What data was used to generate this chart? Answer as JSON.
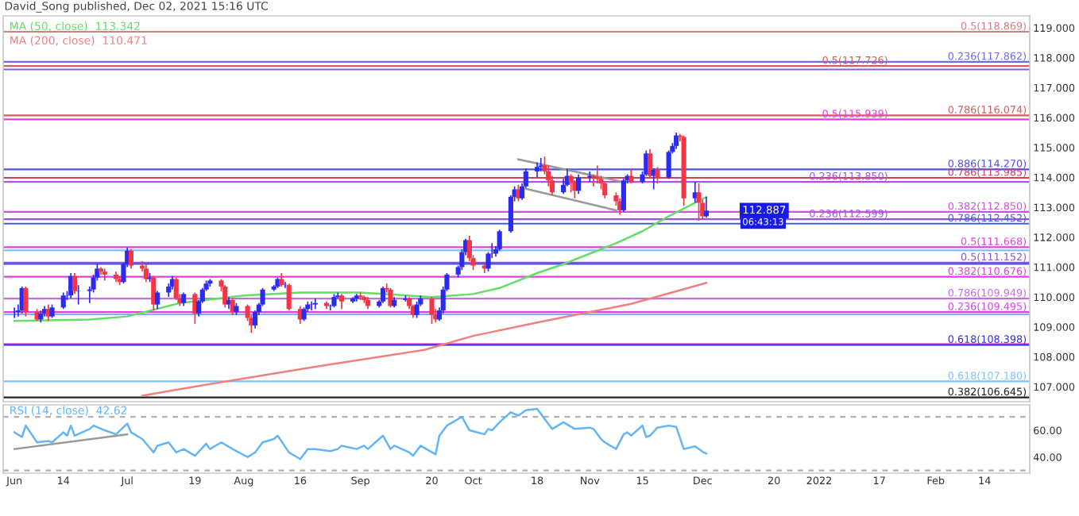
{
  "chart_data": [
    {
      "type": "candlestick",
      "annotations": [
        "David_Song published, Dec 02, 2021 15:16 UTC",
        {
          "text": "112.887",
          "y": 112.887
        },
        "06:43:13"
      ],
      "x": [
        "2021-06-01",
        "2021-06-02",
        "2021-06-03",
        "2021-06-04",
        "2021-06-07",
        "2021-06-08",
        "2021-06-09",
        "2021-06-10",
        "2021-06-11",
        "2021-06-14",
        "2021-06-15",
        "2021-06-16",
        "2021-06-17",
        "2021-06-18",
        "2021-06-21",
        "2021-06-22",
        "2021-06-23",
        "2021-06-24",
        "2021-06-25",
        "2021-06-28",
        "2021-06-29",
        "2021-06-30",
        "2021-07-01",
        "2021-07-02",
        "2021-07-05",
        "2021-07-06",
        "2021-07-07",
        "2021-07-08",
        "2021-07-09",
        "2021-07-12",
        "2021-07-13",
        "2021-07-14",
        "2021-07-15",
        "2021-07-16",
        "2021-07-19",
        "2021-07-20",
        "2021-07-21",
        "2021-07-22",
        "2021-07-23",
        "2021-07-26",
        "2021-07-27",
        "2021-07-28",
        "2021-07-29",
        "2021-07-30",
        "2021-08-02",
        "2021-08-03",
        "2021-08-04",
        "2021-08-05",
        "2021-08-06",
        "2021-08-09",
        "2021-08-10",
        "2021-08-11",
        "2021-08-12",
        "2021-08-13",
        "2021-08-16",
        "2021-08-17",
        "2021-08-18",
        "2021-08-19",
        "2021-08-20",
        "2021-08-23",
        "2021-08-24",
        "2021-08-25",
        "2021-08-26",
        "2021-08-27",
        "2021-08-30",
        "2021-08-31",
        "2021-09-01",
        "2021-09-02",
        "2021-09-03",
        "2021-09-06",
        "2021-09-07",
        "2021-09-08",
        "2021-09-09",
        "2021-09-10",
        "2021-09-13",
        "2021-09-14",
        "2021-09-15",
        "2021-09-16",
        "2021-09-17",
        "2021-09-20",
        "2021-09-21",
        "2021-09-22",
        "2021-09-23",
        "2021-09-24",
        "2021-09-27",
        "2021-09-28",
        "2021-09-29",
        "2021-09-30",
        "2021-10-01",
        "2021-10-04",
        "2021-10-05",
        "2021-10-06",
        "2021-10-07",
        "2021-10-08",
        "2021-10-11",
        "2021-10-12",
        "2021-10-13",
        "2021-10-14",
        "2021-10-15",
        "2021-10-18",
        "2021-10-19",
        "2021-10-20",
        "2021-10-21",
        "2021-10-22",
        "2021-10-25",
        "2021-10-26",
        "2021-10-27",
        "2021-10-28",
        "2021-10-29",
        "2021-11-01",
        "2021-11-02",
        "2021-11-03",
        "2021-11-04",
        "2021-11-05",
        "2021-11-08",
        "2021-11-09",
        "2021-11-10",
        "2021-11-11",
        "2021-11-12",
        "2021-11-15",
        "2021-11-16",
        "2021-11-17",
        "2021-11-18",
        "2021-11-19",
        "2021-11-22",
        "2021-11-23",
        "2021-11-24",
        "2021-11-25",
        "2021-11-26",
        "2021-11-29",
        "2021-11-30",
        "2021-12-01",
        "2021-12-02"
      ],
      "ohlc": [
        [
          109.5,
          109.65,
          109.3,
          109.5
        ],
        [
          109.5,
          109.75,
          109.35,
          109.55
        ],
        [
          109.55,
          110.35,
          109.45,
          110.3
        ],
        [
          110.3,
          110.35,
          109.35,
          109.5
        ],
        [
          109.5,
          109.6,
          109.2,
          109.25
        ],
        [
          109.25,
          109.55,
          109.15,
          109.45
        ],
        [
          109.45,
          109.7,
          109.35,
          109.6
        ],
        [
          109.6,
          109.75,
          109.2,
          109.35
        ],
        [
          109.35,
          109.75,
          109.3,
          109.65
        ],
        [
          109.65,
          110.15,
          109.6,
          110.05
        ],
        [
          110.05,
          110.2,
          109.9,
          110.05
        ],
        [
          110.05,
          110.8,
          109.95,
          110.7
        ],
        [
          110.7,
          110.8,
          110.1,
          110.2
        ],
        [
          110.2,
          110.4,
          109.75,
          110.2
        ],
        [
          110.2,
          110.35,
          109.8,
          110.25
        ],
        [
          110.25,
          110.75,
          110.15,
          110.65
        ],
        [
          110.65,
          111.1,
          110.55,
          110.95
        ],
        [
          110.95,
          111.0,
          110.75,
          110.85
        ],
        [
          110.85,
          110.95,
          110.55,
          110.75
        ],
        [
          110.75,
          110.85,
          110.5,
          110.6
        ],
        [
          110.6,
          110.7,
          110.4,
          110.5
        ],
        [
          110.5,
          111.15,
          110.45,
          111.1
        ],
        [
          111.1,
          111.65,
          111.0,
          111.55
        ],
        [
          111.55,
          111.6,
          110.95,
          111.05
        ],
        [
          111.05,
          111.2,
          110.85,
          110.95
        ],
        [
          110.95,
          111.1,
          110.5,
          110.6
        ],
        [
          110.6,
          110.8,
          110.5,
          110.65
        ],
        [
          110.65,
          110.7,
          109.55,
          109.75
        ],
        [
          109.75,
          110.2,
          109.6,
          110.15
        ],
        [
          110.15,
          110.45,
          110.0,
          110.35
        ],
        [
          110.35,
          110.7,
          110.25,
          110.6
        ],
        [
          110.6,
          110.65,
          109.9,
          109.95
        ],
        [
          109.95,
          110.1,
          109.7,
          109.8
        ],
        [
          109.8,
          110.15,
          109.7,
          110.1
        ],
        [
          110.1,
          110.15,
          109.1,
          109.45
        ],
        [
          109.45,
          109.9,
          109.35,
          109.85
        ],
        [
          109.85,
          110.3,
          109.8,
          110.25
        ],
        [
          110.25,
          110.55,
          110.2,
          110.45
        ],
        [
          110.45,
          110.6,
          110.35,
          110.55
        ],
        [
          110.55,
          110.6,
          110.2,
          110.35
        ],
        [
          110.35,
          110.4,
          109.65,
          109.75
        ],
        [
          109.75,
          110.0,
          109.6,
          109.9
        ],
        [
          109.9,
          109.95,
          109.4,
          109.5
        ],
        [
          109.5,
          109.8,
          109.4,
          109.7
        ],
        [
          109.7,
          109.75,
          109.2,
          109.3
        ],
        [
          109.3,
          109.4,
          108.8,
          109.05
        ],
        [
          109.05,
          109.55,
          108.95,
          109.5
        ],
        [
          109.5,
          109.8,
          109.4,
          109.75
        ],
        [
          109.75,
          110.3,
          109.7,
          110.25
        ],
        [
          110.25,
          110.4,
          110.2,
          110.35
        ],
        [
          110.35,
          110.65,
          110.3,
          110.6
        ],
        [
          110.6,
          110.8,
          110.35,
          110.4
        ],
        [
          110.4,
          110.5,
          110.3,
          110.4
        ],
        [
          110.4,
          110.45,
          109.55,
          109.6
        ],
        [
          109.6,
          109.7,
          109.1,
          109.25
        ],
        [
          109.25,
          109.65,
          109.2,
          109.6
        ],
        [
          109.6,
          109.85,
          109.5,
          109.75
        ],
        [
          109.75,
          109.85,
          109.55,
          109.75
        ],
        [
          109.75,
          109.95,
          109.6,
          109.8
        ],
        [
          109.8,
          109.85,
          109.6,
          109.7
        ],
        [
          109.7,
          109.75,
          109.55,
          109.7
        ],
        [
          109.7,
          110.1,
          109.65,
          110.0
        ],
        [
          110.0,
          110.15,
          109.95,
          110.05
        ],
        [
          110.05,
          110.1,
          109.6,
          109.85
        ],
        [
          109.85,
          110.0,
          109.8,
          109.95
        ],
        [
          109.95,
          110.1,
          109.85,
          110.05
        ],
        [
          110.05,
          110.15,
          109.9,
          110.0
        ],
        [
          110.0,
          110.05,
          109.8,
          109.9
        ],
        [
          109.9,
          110.0,
          109.6,
          109.7
        ],
        [
          109.7,
          109.9,
          109.65,
          109.85
        ],
        [
          109.85,
          110.35,
          109.8,
          110.3
        ],
        [
          110.3,
          110.45,
          110.15,
          110.25
        ],
        [
          110.25,
          110.3,
          109.65,
          109.7
        ],
        [
          109.7,
          110.0,
          109.65,
          109.9
        ],
        [
          109.9,
          110.05,
          109.85,
          109.95
        ],
        [
          109.95,
          110.0,
          109.6,
          109.7
        ],
        [
          109.7,
          109.75,
          109.3,
          109.4
        ],
        [
          109.4,
          109.85,
          109.3,
          109.75
        ],
        [
          109.75,
          110.05,
          109.7,
          109.95
        ],
        [
          109.95,
          110.0,
          109.1,
          109.4
        ],
        [
          109.4,
          109.6,
          109.15,
          109.25
        ],
        [
          109.25,
          109.65,
          109.2,
          109.55
        ],
        [
          109.55,
          110.35,
          109.45,
          110.25
        ],
        [
          110.25,
          110.8,
          110.2,
          110.75
        ],
        [
          110.75,
          111.05,
          110.65,
          111.0
        ],
        [
          111.0,
          111.6,
          110.9,
          111.5
        ],
        [
          111.5,
          111.95,
          111.4,
          111.9
        ],
        [
          111.9,
          112.05,
          111.2,
          111.3
        ],
        [
          111.3,
          111.4,
          110.9,
          111.05
        ],
        [
          111.05,
          111.15,
          110.8,
          110.95
        ],
        [
          110.95,
          111.5,
          110.85,
          111.45
        ],
        [
          111.45,
          111.8,
          111.3,
          111.45
        ],
        [
          111.45,
          111.7,
          111.35,
          111.6
        ],
        [
          111.6,
          112.25,
          111.55,
          112.2
        ],
        [
          112.2,
          113.4,
          112.15,
          113.35
        ],
        [
          113.35,
          113.7,
          113.2,
          113.6
        ],
        [
          113.6,
          113.75,
          113.2,
          113.3
        ],
        [
          113.3,
          113.8,
          113.25,
          113.7
        ],
        [
          113.7,
          114.3,
          113.65,
          114.2
        ],
        [
          114.2,
          114.5,
          114.0,
          114.35
        ],
        [
          114.35,
          114.65,
          114.2,
          114.4
        ],
        [
          114.4,
          114.7,
          114.1,
          114.2
        ],
        [
          114.2,
          114.4,
          113.7,
          113.9
        ],
        [
          113.9,
          114.05,
          113.4,
          113.5
        ],
        [
          113.5,
          113.95,
          113.45,
          113.75
        ],
        [
          113.75,
          114.3,
          113.7,
          114.05
        ],
        [
          114.05,
          114.1,
          113.5,
          113.85
        ],
        [
          113.85,
          113.9,
          113.3,
          113.55
        ],
        [
          113.55,
          114.1,
          113.45,
          114.0
        ],
        [
          114.0,
          114.2,
          113.85,
          114.05
        ],
        [
          114.05,
          114.1,
          113.7,
          114.0
        ],
        [
          114.0,
          114.4,
          113.8,
          113.95
        ],
        [
          113.95,
          114.05,
          113.6,
          113.8
        ],
        [
          113.8,
          113.85,
          113.3,
          113.4
        ],
        [
          113.4,
          113.5,
          113.05,
          113.2
        ],
        [
          113.2,
          113.3,
          112.75,
          112.9
        ],
        [
          112.9,
          113.95,
          112.85,
          113.9
        ],
        [
          113.9,
          114.1,
          113.8,
          114.05
        ],
        [
          114.05,
          114.3,
          113.8,
          113.85
        ],
        [
          113.85,
          114.2,
          113.8,
          114.1
        ],
        [
          114.1,
          114.9,
          114.05,
          114.8
        ],
        [
          114.8,
          114.95,
          113.95,
          114.05
        ],
        [
          114.05,
          114.3,
          113.6,
          114.25
        ],
        [
          114.25,
          114.35,
          113.8,
          114.0
        ],
        [
          114.0,
          114.9,
          113.95,
          114.85
        ],
        [
          114.85,
          115.15,
          114.8,
          115.05
        ],
        [
          115.05,
          115.5,
          114.95,
          115.4
        ],
        [
          115.4,
          115.45,
          115.2,
          115.35
        ],
        [
          115.35,
          115.4,
          113.05,
          113.3
        ],
        [
          113.3,
          113.85,
          113.15,
          113.5
        ],
        [
          113.5,
          113.8,
          112.55,
          113.15
        ],
        [
          113.15,
          113.25,
          112.6,
          112.7
        ],
        [
          112.7,
          113.35,
          112.65,
          112.887
        ]
      ],
      "series": [
        {
          "type": "line",
          "name": "MA (50, close)",
          "color": "#66dd66",
          "x": [
            "2021-06-01",
            "2021-06-21",
            "2021-07-01",
            "2021-07-15",
            "2021-08-01",
            "2021-08-16",
            "2021-09-01",
            "2021-09-20",
            "2021-10-01",
            "2021-10-08",
            "2021-10-18",
            "2021-10-25",
            "2021-11-01",
            "2021-11-08",
            "2021-11-15",
            "2021-11-22",
            "2021-12-02"
          ],
          "values": [
            109.2,
            109.25,
            109.35,
            109.8,
            110.05,
            110.15,
            110.15,
            110.0,
            110.1,
            110.3,
            110.8,
            111.1,
            111.45,
            111.8,
            112.2,
            112.7,
            113.342
          ],
          "value_labels": [
            null,
            null,
            null,
            null,
            null,
            null,
            null,
            null,
            null,
            null,
            null,
            null,
            null,
            null,
            null,
            null,
            "113.342"
          ]
        },
        {
          "type": "line",
          "name": "MA (200, close)",
          "color": "#f08080",
          "x": [
            "2021-07-05",
            "2021-07-14",
            "2021-08-20",
            "2021-09-18",
            "2021-10-01",
            "2021-10-18",
            "2021-11-12",
            "2021-12-02"
          ],
          "values": [
            106.7,
            106.9,
            107.67,
            108.23,
            108.7,
            109.15,
            109.77,
            110.471
          ],
          "value_labels": [
            null,
            null,
            null,
            null,
            null,
            null,
            null,
            "110.471"
          ]
        },
        {
          "type": "line",
          "color": "#999999",
          "x": [
            "2021-10-13",
            "2021-11-09"
          ],
          "values": [
            114.6,
            113.87
          ]
        },
        {
          "type": "line",
          "color": "#999999",
          "x": [
            "2021-10-15",
            "2021-11-08"
          ],
          "values": [
            113.62,
            112.9
          ]
        }
      ],
      "ref_lines": [
        {
          "axis": "y",
          "value": 118.869,
          "label": "0.5(118.869)",
          "color": "#d08080"
        },
        {
          "axis": "y",
          "value": 117.862,
          "label": "0.236(117.862)",
          "color": "#6b6be6"
        },
        {
          "axis": "y",
          "value": 117.726,
          "label": "0.5(117.726)",
          "color": "#d06060"
        },
        {
          "axis": "y",
          "value": 117.608,
          "color": "#6b6be6"
        },
        {
          "axis": "y",
          "value": 116.074,
          "label": "0.786(116.074)",
          "color": "#d06060"
        },
        {
          "axis": "y",
          "value": 115.939,
          "label": "0.5(115.939)",
          "color": "#e040e0"
        },
        {
          "axis": "y",
          "value": 114.27,
          "label": "0.886(114.270)",
          "color": "#5050e0"
        },
        {
          "axis": "y",
          "value": 113.985,
          "label": "0.786(113.985)",
          "color": "#d04060"
        },
        {
          "axis": "y",
          "value": 113.85,
          "label": "0.236(113.850)",
          "color": "#b050e0"
        },
        {
          "axis": "y",
          "value": 112.85,
          "label": "0.382(112.850)",
          "color": "#d050e0"
        },
        {
          "axis": "y",
          "value": 112.599,
          "label": "0.236(112.599)",
          "color": "#a050e0"
        },
        {
          "axis": "y",
          "value": 112.452,
          "label": "0.786(112.452)",
          "color": "#4060e0"
        },
        {
          "axis": "y",
          "value": 111.668,
          "label": "0.5(111.668)",
          "color": "#e040e0"
        },
        {
          "axis": "y",
          "value": 111.56,
          "color": "#80c0ff"
        },
        {
          "axis": "y",
          "value": 111.152,
          "label": "0.5(111.152)",
          "color": "#9050e0"
        },
        {
          "axis": "y",
          "value": 111.106,
          "color": "#5050e0"
        },
        {
          "axis": "y",
          "value": 110.676,
          "label": "0.382(110.676)",
          "color": "#e040e0"
        },
        {
          "axis": "y",
          "value": 109.949,
          "label": "0.786(109.949)",
          "color": "#c070e0"
        },
        {
          "axis": "y",
          "value": 109.495,
          "label": "0.236(109.495)",
          "color": "#e040e0"
        },
        {
          "axis": "y",
          "value": 109.42,
          "color": "#80b0ff"
        },
        {
          "axis": "y",
          "value": 108.428,
          "color": "#e050e0"
        },
        {
          "axis": "y",
          "value": 108.398,
          "label": "0.618(108.398)",
          "color": "#3030e0"
        },
        {
          "axis": "y",
          "value": 107.18,
          "label": "0.618(107.180)",
          "color": "#80c0ff"
        },
        {
          "axis": "y",
          "value": 106.645,
          "label": "0.382(106.645)",
          "color": "#222222"
        }
      ],
      "xlim": [
        "2021-05-29",
        "2022-02-26"
      ],
      "ylim": [
        106.5,
        119.4
      ],
      "yticks": [
        {
          "value": 107,
          "label": "107.000"
        },
        {
          "value": 108,
          "label": "108.000"
        },
        {
          "value": 109,
          "label": "109.000"
        },
        {
          "value": 110,
          "label": "110.000"
        },
        {
          "value": 111,
          "label": "111.000"
        },
        {
          "value": 112,
          "label": "112.000"
        },
        {
          "value": 113,
          "label": "113.000"
        },
        {
          "value": 114,
          "label": "114.000"
        },
        {
          "value": 115,
          "label": "115.000"
        },
        {
          "value": 116,
          "label": "116.000"
        },
        {
          "value": 117,
          "label": "117.000"
        },
        {
          "value": 118,
          "label": "118.000"
        },
        {
          "value": 119,
          "label": "119.000"
        }
      ],
      "tick_labels": "y"
    },
    {
      "type": "line",
      "series": [
        {
          "name": "RSI (14, close)",
          "color": "#64b5f6",
          "x": [
            "2021-06-01",
            "2021-06-03",
            "2021-06-04",
            "2021-06-07",
            "2021-06-10",
            "2021-06-11",
            "2021-06-14",
            "2021-06-15",
            "2021-06-16",
            "2021-06-17",
            "2021-06-21",
            "2021-06-22",
            "2021-06-25",
            "2021-06-28",
            "2021-07-01",
            "2021-07-02",
            "2021-07-05",
            "2021-07-08",
            "2021-07-09",
            "2021-07-12",
            "2021-07-14",
            "2021-07-16",
            "2021-07-19",
            "2021-07-22",
            "2021-07-23",
            "2021-07-26",
            "2021-07-29",
            "2021-08-02",
            "2021-08-04",
            "2021-08-06",
            "2021-08-09",
            "2021-08-10",
            "2021-08-13",
            "2021-08-16",
            "2021-08-18",
            "2021-08-20",
            "2021-08-24",
            "2021-08-26",
            "2021-08-27",
            "2021-08-31",
            "2021-09-02",
            "2021-09-03",
            "2021-09-07",
            "2021-09-09",
            "2021-09-10",
            "2021-09-14",
            "2021-09-15",
            "2021-09-17",
            "2021-09-21",
            "2021-09-22",
            "2021-09-24",
            "2021-09-28",
            "2021-09-30",
            "2021-10-04",
            "2021-10-05",
            "2021-10-06",
            "2021-10-08",
            "2021-10-11",
            "2021-10-13",
            "2021-10-15",
            "2021-10-18",
            "2021-10-20",
            "2021-10-22",
            "2021-10-25",
            "2021-10-28",
            "2021-11-01",
            "2021-11-02",
            "2021-11-04",
            "2021-11-05",
            "2021-11-08",
            "2021-11-10",
            "2021-11-11",
            "2021-11-12",
            "2021-11-15",
            "2021-11-16",
            "2021-11-17",
            "2021-11-19",
            "2021-11-22",
            "2021-11-24",
            "2021-11-26",
            "2021-11-29",
            "2021-12-01",
            "2021-12-02"
          ],
          "values": [
            58.5,
            55,
            63.5,
            51,
            52,
            51,
            58.5,
            56,
            63.5,
            56,
            61,
            63.5,
            60,
            57,
            65,
            58.5,
            53.5,
            43.5,
            48.5,
            51,
            43.5,
            46,
            41,
            50,
            46,
            51,
            46,
            40,
            43.5,
            51,
            53.5,
            56,
            43.5,
            38.5,
            46,
            46,
            44.5,
            46,
            48.5,
            46,
            48.5,
            46,
            56,
            46,
            48.5,
            43.5,
            41,
            48.5,
            42,
            56,
            63.5,
            70,
            60,
            57,
            61,
            60,
            66,
            73.5,
            71,
            75,
            76,
            68.5,
            61,
            66,
            61,
            62,
            61,
            53.5,
            51,
            46,
            57,
            58.5,
            56,
            63.5,
            55,
            56,
            62,
            63.5,
            62.5,
            46,
            48,
            44,
            42.62
          ],
          "value_labels": [
            null,
            null,
            null,
            null,
            null,
            null,
            null,
            null,
            null,
            null,
            null,
            null,
            null,
            null,
            null,
            null,
            null,
            null,
            null,
            null,
            null,
            null,
            null,
            null,
            null,
            null,
            null,
            null,
            null,
            null,
            null,
            null,
            null,
            null,
            null,
            null,
            null,
            null,
            null,
            null,
            null,
            null,
            null,
            null,
            null,
            null,
            null,
            null,
            null,
            null,
            null,
            null,
            null,
            null,
            null,
            null,
            null,
            null,
            null,
            null,
            null,
            null,
            null,
            null,
            null,
            null,
            null,
            null,
            null,
            null,
            null,
            null,
            null,
            null,
            null,
            null,
            null,
            null,
            null,
            null,
            null,
            null,
            "42.62"
          ]
        },
        {
          "color": "#999999",
          "x": [
            "2021-06-01",
            "2021-07-01"
          ],
          "values": [
            46,
            57
          ]
        }
      ],
      "ref_lines": [
        {
          "axis": "y",
          "value": 70,
          "color": "#b0b0b0",
          "line_style": "dashed"
        },
        {
          "axis": "y",
          "value": 30,
          "color": "#b0b0b0",
          "line_style": "dashed"
        }
      ],
      "xlim": [
        "2021-05-29",
        "2022-02-26"
      ],
      "xticks": [
        {
          "value": "2021-06-01",
          "label": "Jun"
        },
        {
          "value": "2021-06-14",
          "label": "14"
        },
        {
          "value": "2021-07-01",
          "label": "Jul"
        },
        {
          "value": "2021-07-19",
          "label": "19"
        },
        {
          "value": "2021-08-01",
          "label": "Aug"
        },
        {
          "value": "2021-08-16",
          "label": "16"
        },
        {
          "value": "2021-09-01",
          "label": "Sep"
        },
        {
          "value": "2021-09-20",
          "label": "20"
        },
        {
          "value": "2021-10-01",
          "label": "Oct"
        },
        {
          "value": "2021-10-18",
          "label": "18"
        },
        {
          "value": "2021-11-01",
          "label": "Nov"
        },
        {
          "value": "2021-11-15",
          "label": "15"
        },
        {
          "value": "2021-12-01",
          "label": "Dec"
        },
        {
          "value": "2021-12-20",
          "label": "20"
        },
        {
          "value": "2022-01-01",
          "label": "2022"
        },
        {
          "value": "2022-01-17",
          "label": "17"
        },
        {
          "value": "2022-02-01",
          "label": "Feb"
        },
        {
          "value": "2022-02-14",
          "label": "14"
        }
      ],
      "ylim": [
        28,
        79
      ],
      "yticks": [
        {
          "value": 40,
          "label": "40.00"
        },
        {
          "value": 60,
          "label": "60.00"
        }
      ]
    }
  ]
}
